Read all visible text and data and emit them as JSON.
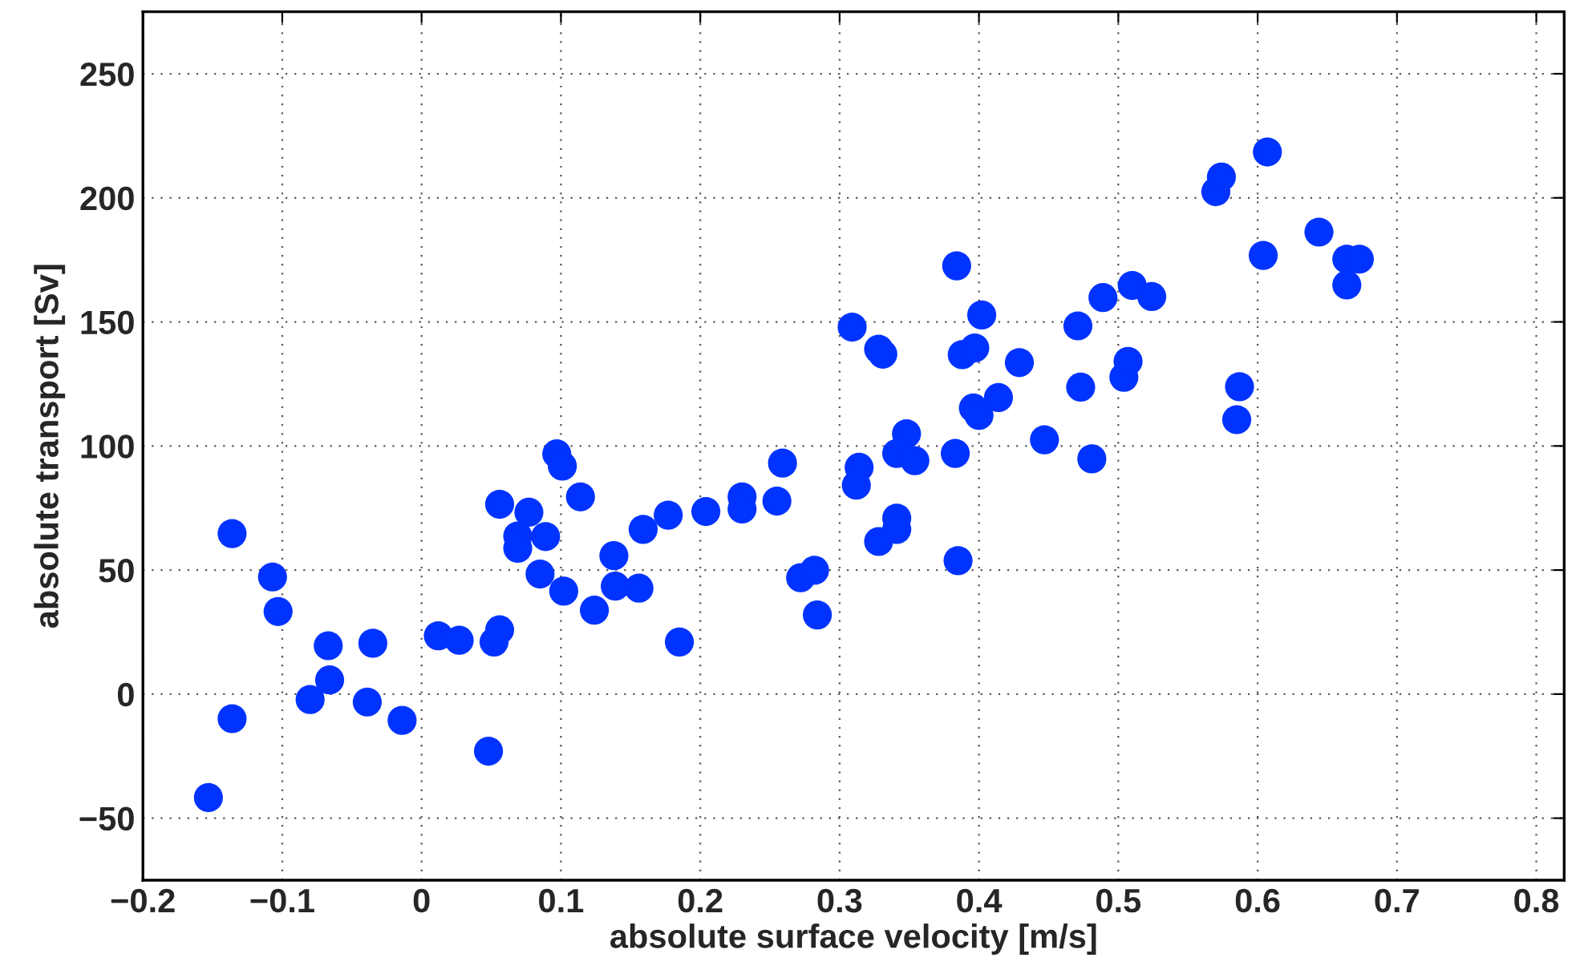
{
  "chart_data": {
    "type": "scatter",
    "xlabel": "absolute surface velocity [m/s]",
    "ylabel": "absolute transport [Sv]",
    "xlim": [
      -0.2,
      0.82
    ],
    "xticks": [
      {
        "value": -0.2,
        "label": "−0.2"
      },
      {
        "value": -0.1,
        "label": "−0.1"
      },
      0,
      0.1,
      0.2,
      0.3,
      0.4,
      0.5,
      0.6,
      0.7,
      0.8
    ],
    "ylim": [
      -75,
      275
    ],
    "yticks": [
      {
        "value": -50,
        "label": "−50"
      },
      0,
      50,
      100,
      150,
      200,
      250
    ],
    "grid": true,
    "marker": "circle",
    "series": [
      {
        "color": "#0033ff",
        "x": [
          -0.153,
          -0.136,
          -0.136,
          -0.107,
          -0.103,
          -0.08,
          -0.067,
          -0.066,
          -0.039,
          -0.035,
          -0.014,
          0.012,
          0.027,
          0.048,
          0.052,
          0.056,
          0.056,
          0.069,
          0.069,
          0.077,
          0.085,
          0.089,
          0.097,
          0.101,
          0.102,
          0.114,
          0.124,
          0.138,
          0.139,
          0.156,
          0.159,
          0.177,
          0.185,
          0.204,
          0.23,
          0.23,
          0.255,
          0.259,
          0.272,
          0.282,
          0.284,
          0.309,
          0.314,
          0.312,
          0.328,
          0.341,
          0.341,
          0.328,
          0.331,
          0.348,
          0.341,
          0.354,
          0.384,
          0.383,
          0.385,
          0.388,
          0.397,
          0.402,
          0.396,
          0.4,
          0.414,
          0.429,
          0.447,
          0.471,
          0.473,
          0.481,
          0.489,
          0.504,
          0.507,
          0.51,
          0.524,
          0.57,
          0.574,
          0.607,
          0.604,
          0.587,
          0.585,
          0.644,
          0.664,
          0.673,
          0.664
        ],
        "values": [
          -41.7,
          64.7,
          -9.9,
          47.2,
          33.3,
          -2.2,
          19.5,
          5.7,
          -3.2,
          20.5,
          -10.6,
          23.5,
          21.7,
          -23,
          21.0,
          25.9,
          76.5,
          63.7,
          58.8,
          73.3,
          48.4,
          63.5,
          96.8,
          91.9,
          41.5,
          79.5,
          33.8,
          55.8,
          43.5,
          42.7,
          66.4,
          72.1,
          21.0,
          73.6,
          79.5,
          74.6,
          77.8,
          93.1,
          46.9,
          49.9,
          31.9,
          147.9,
          91.4,
          84.2,
          61.5,
          70.9,
          66.4,
          139.0,
          137.0,
          104.9,
          97.0,
          94.1,
          172.6,
          97.0,
          53.8,
          136.8,
          139.5,
          152.8,
          115.3,
          112.3,
          119.5,
          133.6,
          102.5,
          148.4,
          123.7,
          94.8,
          159.8,
          127.7,
          134.1,
          164.7,
          160.2,
          202.5,
          208.4,
          218.5,
          176.8,
          123.9,
          110.6,
          186.2,
          175.3,
          175.3,
          164.9
        ]
      }
    ]
  }
}
